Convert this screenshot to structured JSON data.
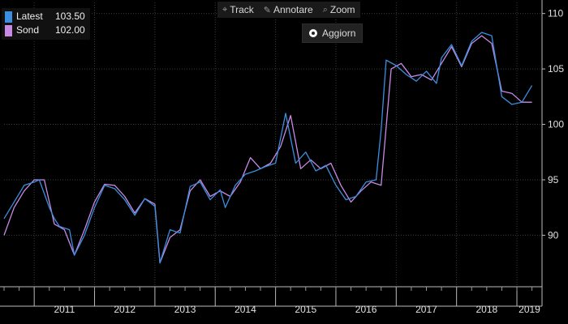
{
  "toolbar": {
    "track_label": "Track",
    "annotate_label": "Annotare",
    "zoom_label": "Zoom",
    "refresh_label": "Aggiorn",
    "track_icon": "crosshair-icon",
    "annotate_icon": "pencil-icon",
    "zoom_icon": "magnifier-icon"
  },
  "legend": [
    {
      "name": "Latest",
      "value": "103.50",
      "color": "#3a8fe0"
    },
    {
      "name": "Sond",
      "value": "102.00",
      "color": "#c98ae6"
    }
  ],
  "chart_data": {
    "type": "line",
    "title": "",
    "xlabel": "",
    "ylabel": "",
    "ylim": [
      85.5,
      111
    ],
    "yticks": [
      90,
      95,
      100,
      105,
      110
    ],
    "x_axis": {
      "start": "2010-07",
      "end": "2019-06",
      "year_labels": [
        "2011",
        "2012",
        "2013",
        "2014",
        "2015",
        "2016",
        "2017",
        "2018",
        "2019"
      ],
      "year_starts": [
        "2011-01",
        "2012-01",
        "2013-01",
        "2014-01",
        "2015-01",
        "2016-01",
        "2017-01",
        "2018-01",
        "2019-01"
      ]
    },
    "grid": true,
    "legend_position": "top-left",
    "series": [
      {
        "name": "Latest",
        "color": "#3a8fe0",
        "points": [
          [
            "2010-07",
            91.5
          ],
          [
            "2010-09",
            93.0
          ],
          [
            "2010-11",
            94.5
          ],
          [
            "2011-01",
            94.8
          ],
          [
            "2011-02",
            95.0
          ],
          [
            "2011-04",
            92.5
          ],
          [
            "2011-05",
            91.5
          ],
          [
            "2011-06",
            90.8
          ],
          [
            "2011-08",
            90.5
          ],
          [
            "2011-09",
            88.2
          ],
          [
            "2011-11",
            90.0
          ],
          [
            "2012-01",
            92.5
          ],
          [
            "2012-03",
            94.5
          ],
          [
            "2012-05",
            94.2
          ],
          [
            "2012-07",
            93.2
          ],
          [
            "2012-09",
            91.8
          ],
          [
            "2012-11",
            93.3
          ],
          [
            "2013-01",
            92.6
          ],
          [
            "2013-02",
            87.5
          ],
          [
            "2013-04",
            90.5
          ],
          [
            "2013-06",
            90.2
          ],
          [
            "2013-08",
            94.4
          ],
          [
            "2013-10",
            94.8
          ],
          [
            "2013-12",
            93.2
          ],
          [
            "2014-02",
            94.1
          ],
          [
            "2014-03",
            92.5
          ],
          [
            "2014-05",
            94.5
          ],
          [
            "2014-07",
            95.5
          ],
          [
            "2014-09",
            95.8
          ],
          [
            "2014-11",
            96.2
          ],
          [
            "2015-01",
            96.5
          ],
          [
            "2015-03",
            101.0
          ],
          [
            "2015-05",
            96.5
          ],
          [
            "2015-07",
            97.5
          ],
          [
            "2015-09",
            95.8
          ],
          [
            "2015-11",
            96.3
          ],
          [
            "2016-01",
            94.5
          ],
          [
            "2016-03",
            93.2
          ],
          [
            "2016-05",
            93.5
          ],
          [
            "2016-07",
            94.8
          ],
          [
            "2016-09",
            95.0
          ],
          [
            "2016-10",
            99.5
          ],
          [
            "2016-11",
            105.8
          ],
          [
            "2017-01",
            105.3
          ],
          [
            "2017-03",
            104.5
          ],
          [
            "2017-05",
            103.9
          ],
          [
            "2017-07",
            104.8
          ],
          [
            "2017-09",
            103.7
          ],
          [
            "2017-10",
            106.0
          ],
          [
            "2017-12",
            107.2
          ],
          [
            "2018-02",
            105.3
          ],
          [
            "2018-04",
            107.5
          ],
          [
            "2018-06",
            108.3
          ],
          [
            "2018-08",
            108.0
          ],
          [
            "2018-10",
            102.5
          ],
          [
            "2018-12",
            101.8
          ],
          [
            "2019-02",
            102.0
          ],
          [
            "2019-04",
            103.5
          ]
        ]
      },
      {
        "name": "Sond",
        "color": "#c98ae6",
        "points": [
          [
            "2010-07",
            90.0
          ],
          [
            "2010-09",
            92.5
          ],
          [
            "2010-11",
            94.0
          ],
          [
            "2011-01",
            95.0
          ],
          [
            "2011-03",
            95.0
          ],
          [
            "2011-05",
            91.0
          ],
          [
            "2011-07",
            90.5
          ],
          [
            "2011-09",
            88.2
          ],
          [
            "2011-11",
            90.5
          ],
          [
            "2012-01",
            93.0
          ],
          [
            "2012-03",
            94.6
          ],
          [
            "2012-05",
            94.5
          ],
          [
            "2012-07",
            93.5
          ],
          [
            "2012-09",
            92.0
          ],
          [
            "2012-11",
            93.3
          ],
          [
            "2013-01",
            92.8
          ],
          [
            "2013-02",
            87.5
          ],
          [
            "2013-04",
            89.8
          ],
          [
            "2013-06",
            90.5
          ],
          [
            "2013-08",
            94.0
          ],
          [
            "2013-10",
            95.0
          ],
          [
            "2013-12",
            93.5
          ],
          [
            "2014-02",
            94.0
          ],
          [
            "2014-04",
            93.5
          ],
          [
            "2014-06",
            94.8
          ],
          [
            "2014-08",
            97.0
          ],
          [
            "2014-10",
            96.0
          ],
          [
            "2014-12",
            96.5
          ],
          [
            "2015-02",
            98.0
          ],
          [
            "2015-04",
            100.8
          ],
          [
            "2015-06",
            96.0
          ],
          [
            "2015-08",
            96.8
          ],
          [
            "2015-10",
            96.0
          ],
          [
            "2015-12",
            96.5
          ],
          [
            "2016-02",
            94.5
          ],
          [
            "2016-04",
            93.0
          ],
          [
            "2016-06",
            94.0
          ],
          [
            "2016-08",
            94.8
          ],
          [
            "2016-10",
            94.5
          ],
          [
            "2016-12",
            105.0
          ],
          [
            "2017-02",
            105.5
          ],
          [
            "2017-04",
            104.3
          ],
          [
            "2017-06",
            104.5
          ],
          [
            "2017-08",
            104.0
          ],
          [
            "2017-10",
            105.5
          ],
          [
            "2017-12",
            107.0
          ],
          [
            "2018-02",
            105.2
          ],
          [
            "2018-04",
            107.3
          ],
          [
            "2018-06",
            108.0
          ],
          [
            "2018-08",
            107.3
          ],
          [
            "2018-10",
            103.0
          ],
          [
            "2018-12",
            102.8
          ],
          [
            "2019-02",
            102.0
          ],
          [
            "2019-04",
            102.0
          ]
        ]
      }
    ]
  }
}
